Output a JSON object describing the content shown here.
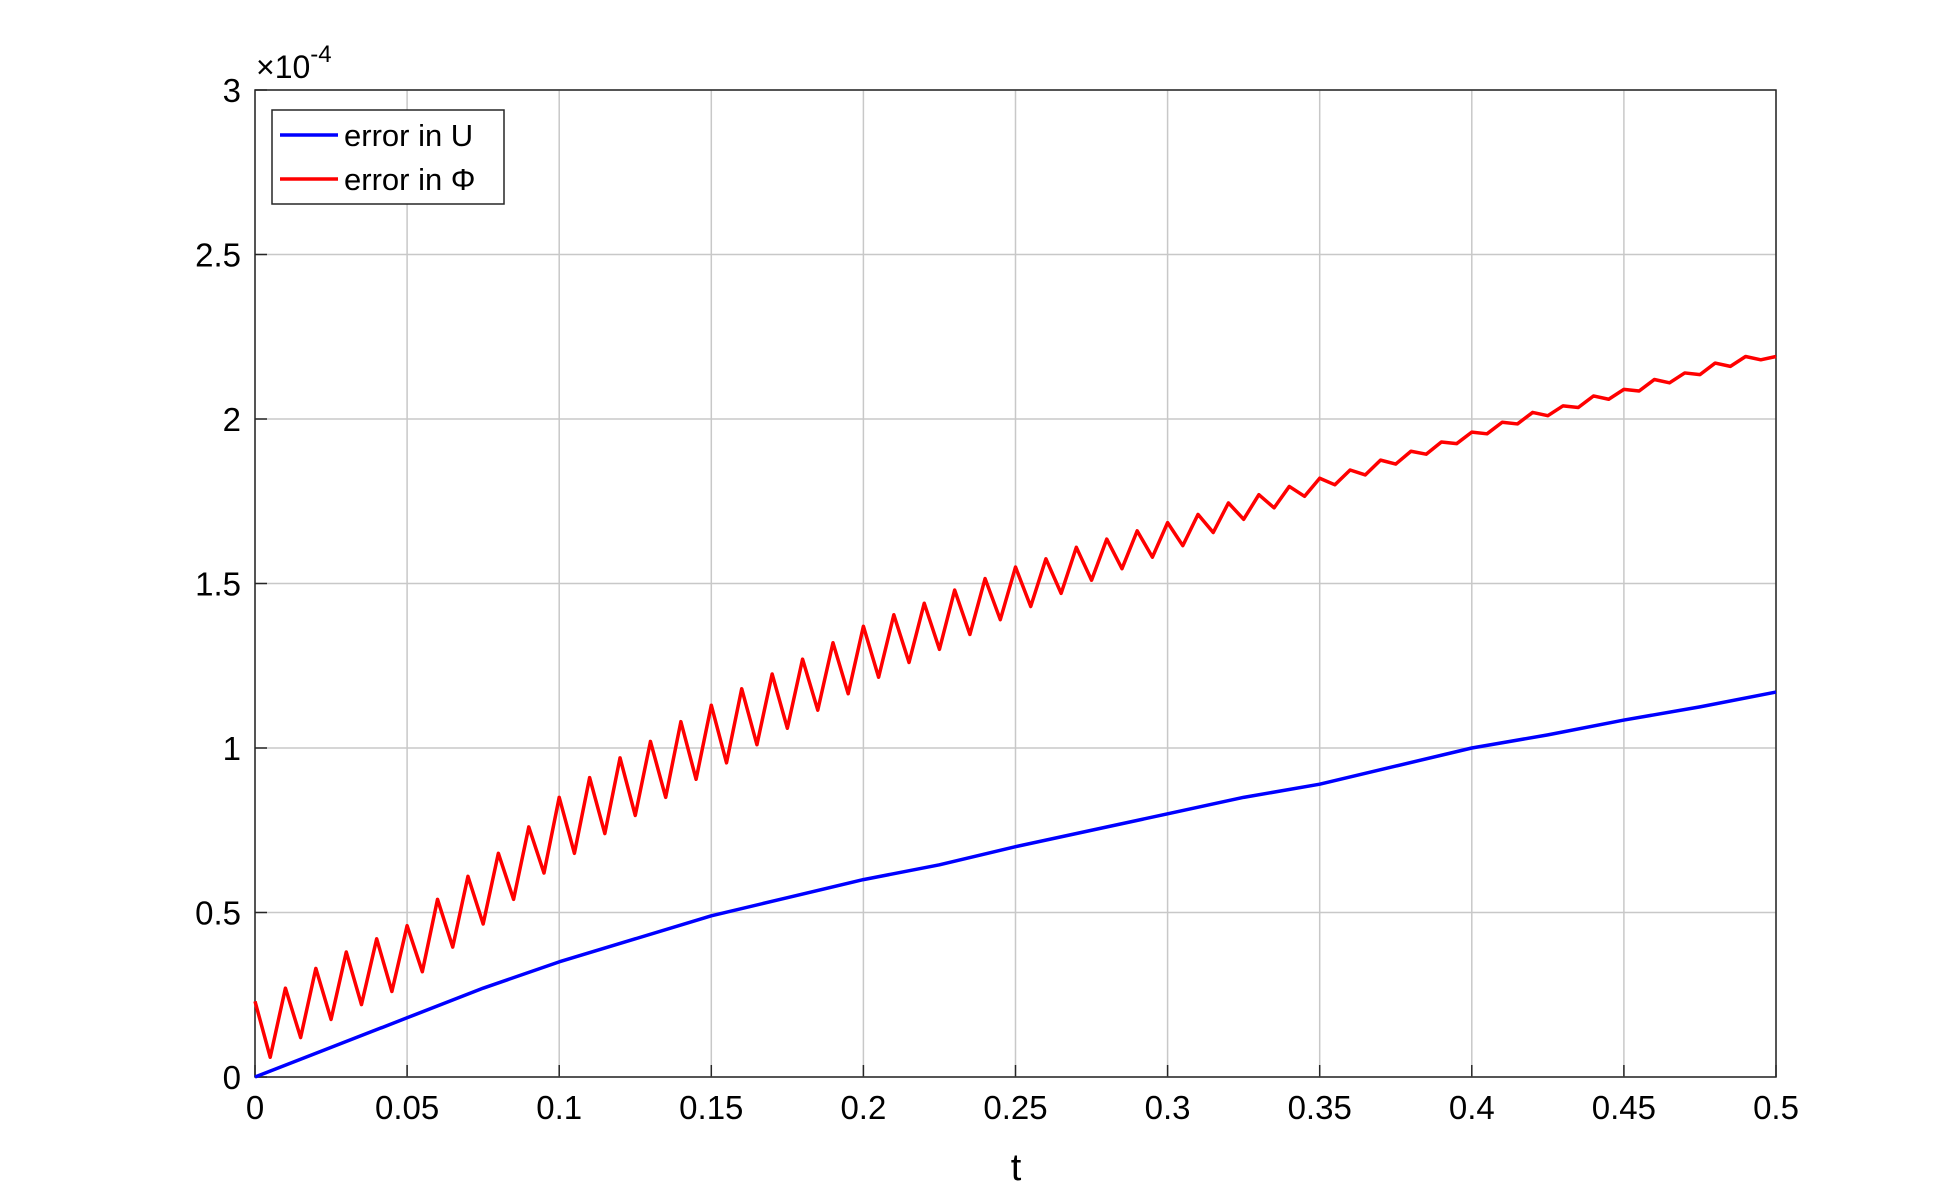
{
  "chart_data": {
    "type": "line",
    "xlabel": "t",
    "y_multiplier": {
      "base": "×10",
      "exponent": "-4"
    },
    "xlim": [
      0,
      0.5
    ],
    "xticks": [
      0,
      0.05,
      0.1,
      0.15,
      0.2,
      0.25,
      0.3,
      0.35,
      0.4,
      0.45,
      0.5
    ],
    "ylim": [
      0,
      3
    ],
    "yticks": [
      0,
      0.5,
      1,
      1.5,
      2,
      2.5,
      3
    ],
    "grid": true,
    "legend": "upper left",
    "series": [
      {
        "name": "error in U",
        "color": "#0000ff",
        "x": [
          0,
          0.025,
          0.05,
          0.075,
          0.1,
          0.125,
          0.15,
          0.175,
          0.2,
          0.225,
          0.25,
          0.275,
          0.3,
          0.325,
          0.35,
          0.375,
          0.4,
          0.425,
          0.45,
          0.475,
          0.5
        ],
        "values": [
          0,
          0.09,
          0.18,
          0.27,
          0.35,
          0.42,
          0.49,
          0.545,
          0.6,
          0.645,
          0.7,
          0.75,
          0.8,
          0.85,
          0.89,
          0.945,
          1.0,
          1.04,
          1.085,
          1.125,
          1.17
        ]
      },
      {
        "name": "error in Φ",
        "color": "#ff0000",
        "x": [
          0,
          0.005,
          0.01,
          0.015,
          0.02,
          0.025,
          0.03,
          0.035,
          0.04,
          0.045,
          0.05,
          0.055,
          0.06,
          0.065,
          0.07,
          0.075,
          0.08,
          0.085,
          0.09,
          0.095,
          0.1,
          0.105,
          0.11,
          0.115,
          0.12,
          0.125,
          0.13,
          0.135,
          0.14,
          0.145,
          0.15,
          0.155,
          0.16,
          0.165,
          0.17,
          0.175,
          0.18,
          0.185,
          0.19,
          0.195,
          0.2,
          0.205,
          0.21,
          0.215,
          0.22,
          0.225,
          0.23,
          0.235,
          0.24,
          0.245,
          0.25,
          0.255,
          0.26,
          0.265,
          0.27,
          0.275,
          0.28,
          0.285,
          0.29,
          0.295,
          0.3,
          0.305,
          0.31,
          0.315,
          0.32,
          0.325,
          0.33,
          0.335,
          0.34,
          0.345,
          0.35,
          0.355,
          0.36,
          0.365,
          0.37,
          0.375,
          0.38,
          0.385,
          0.39,
          0.395,
          0.4,
          0.405,
          0.41,
          0.415,
          0.42,
          0.425,
          0.43,
          0.435,
          0.44,
          0.445,
          0.45,
          0.455,
          0.46,
          0.465,
          0.47,
          0.475,
          0.48,
          0.485,
          0.49,
          0.495,
          0.5
        ],
        "values": [
          0.23,
          0.06,
          0.27,
          0.12,
          0.33,
          0.175,
          0.38,
          0.22,
          0.42,
          0.26,
          0.46,
          0.32,
          0.54,
          0.395,
          0.61,
          0.465,
          0.68,
          0.54,
          0.76,
          0.62,
          0.85,
          0.68,
          0.91,
          0.74,
          0.97,
          0.795,
          1.02,
          0.85,
          1.08,
          0.905,
          1.13,
          0.955,
          1.18,
          1.01,
          1.225,
          1.06,
          1.27,
          1.115,
          1.32,
          1.165,
          1.37,
          1.215,
          1.405,
          1.26,
          1.44,
          1.3,
          1.48,
          1.345,
          1.515,
          1.39,
          1.55,
          1.43,
          1.575,
          1.47,
          1.61,
          1.51,
          1.635,
          1.545,
          1.66,
          1.58,
          1.685,
          1.615,
          1.71,
          1.655,
          1.745,
          1.695,
          1.77,
          1.73,
          1.795,
          1.765,
          1.82,
          1.8,
          1.845,
          1.83,
          1.875,
          1.863,
          1.902,
          1.893,
          1.93,
          1.925,
          1.96,
          1.955,
          1.99,
          1.985,
          2.02,
          2.01,
          2.04,
          2.035,
          2.07,
          2.06,
          2.09,
          2.085,
          2.12,
          2.11,
          2.14,
          2.135,
          2.17,
          2.16,
          2.19,
          2.18,
          2.19
        ]
      }
    ]
  }
}
